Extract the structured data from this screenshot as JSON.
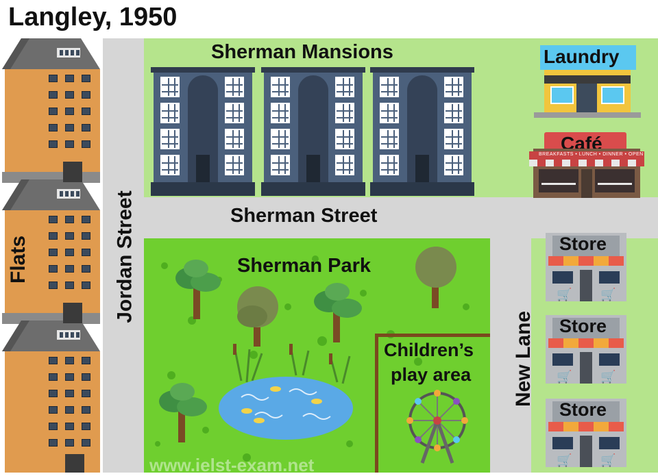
{
  "title": "Langley, 1950",
  "streets": {
    "vertical_left": "Jordan Street",
    "horizontal": "Sherman Street",
    "vertical_right": "New Lane"
  },
  "buildings": {
    "flats": "Flats",
    "mansions": "Sherman Mansions",
    "laundry": "Laundry",
    "cafe": "Café",
    "cafe_menu": "BREAKFASTS • LUNCH • DINNER • OPEN",
    "stores": [
      "Store",
      "Store",
      "Store"
    ]
  },
  "park": {
    "name": "Sherman Park",
    "play_area": [
      "Children’s",
      "play area"
    ]
  },
  "watermark": "www.ielst-exam.net",
  "colors": {
    "park_green": "#6fcf2f",
    "grass": "#b5e48c",
    "road": "#d6d6d6",
    "flat_wall": "#e09b4f",
    "mansion_wall": "#4b607c",
    "laundry_sign": "#5bc8f0",
    "cafe_sign": "#d94c4c",
    "pond": "#5aa9e6",
    "play_border": "#7a4a1e"
  }
}
